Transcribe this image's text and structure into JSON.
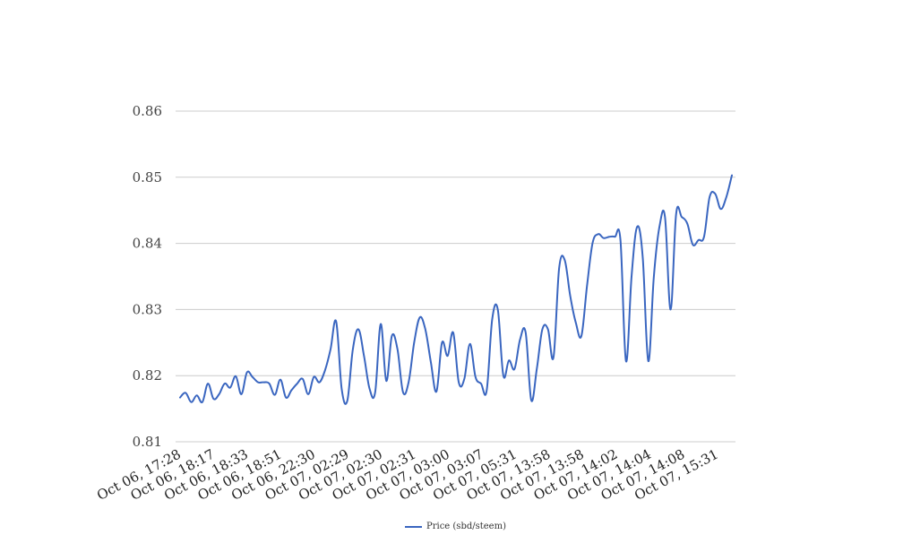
{
  "chart_data": {
    "type": "line",
    "ylim": [
      0.81,
      0.86
    ],
    "yticks": [
      "0.81",
      "0.82",
      "0.83",
      "0.84",
      "0.85",
      "0.86"
    ],
    "grid": true,
    "legend": "bottom-center",
    "x_tick_labels": [
      "Oct 06, 17:28",
      "Oct 06, 18:17",
      "Oct 06, 18:33",
      "Oct 06, 18:51",
      "Oct 06, 22:30",
      "Oct 07, 02:29",
      "Oct 07, 02:30",
      "Oct 07, 02:31",
      "Oct 07, 03:00",
      "Oct 07, 03:07",
      "Oct 07, 05:31",
      "Oct 07, 13:58",
      "Oct 07, 13:58",
      "Oct 07, 14:02",
      "Oct 07, 14:04",
      "Oct 07, 14:08",
      "Oct 07, 15:31"
    ],
    "series": [
      {
        "name": "Price (sbd/steem)",
        "color": "#3a66c0",
        "values": [
          0.8167,
          0.8174,
          0.816,
          0.817,
          0.816,
          0.8188,
          0.8165,
          0.8172,
          0.8188,
          0.8182,
          0.8199,
          0.8172,
          0.8205,
          0.8198,
          0.819,
          0.819,
          0.8188,
          0.8171,
          0.8194,
          0.8167,
          0.8178,
          0.8188,
          0.8195,
          0.8172,
          0.8198,
          0.819,
          0.8208,
          0.824,
          0.8282,
          0.818,
          0.8162,
          0.824,
          0.827,
          0.823,
          0.818,
          0.8175,
          0.8278,
          0.8192,
          0.826,
          0.824,
          0.8175,
          0.819,
          0.825,
          0.8288,
          0.827,
          0.822,
          0.8176,
          0.825,
          0.823,
          0.8265,
          0.819,
          0.8195,
          0.8248,
          0.8198,
          0.8188,
          0.8177,
          0.8285,
          0.83,
          0.82,
          0.8223,
          0.821,
          0.8255,
          0.8265,
          0.8163,
          0.821,
          0.827,
          0.827,
          0.8228,
          0.8362,
          0.8375,
          0.832,
          0.828,
          0.826,
          0.8335,
          0.84,
          0.8414,
          0.8408,
          0.841,
          0.841,
          0.8405,
          0.8222,
          0.835,
          0.8425,
          0.838,
          0.8222,
          0.835,
          0.8425,
          0.844,
          0.83,
          0.8445,
          0.844,
          0.843,
          0.8398,
          0.8405,
          0.841,
          0.847,
          0.8475,
          0.8452,
          0.847,
          0.8503
        ]
      }
    ]
  }
}
